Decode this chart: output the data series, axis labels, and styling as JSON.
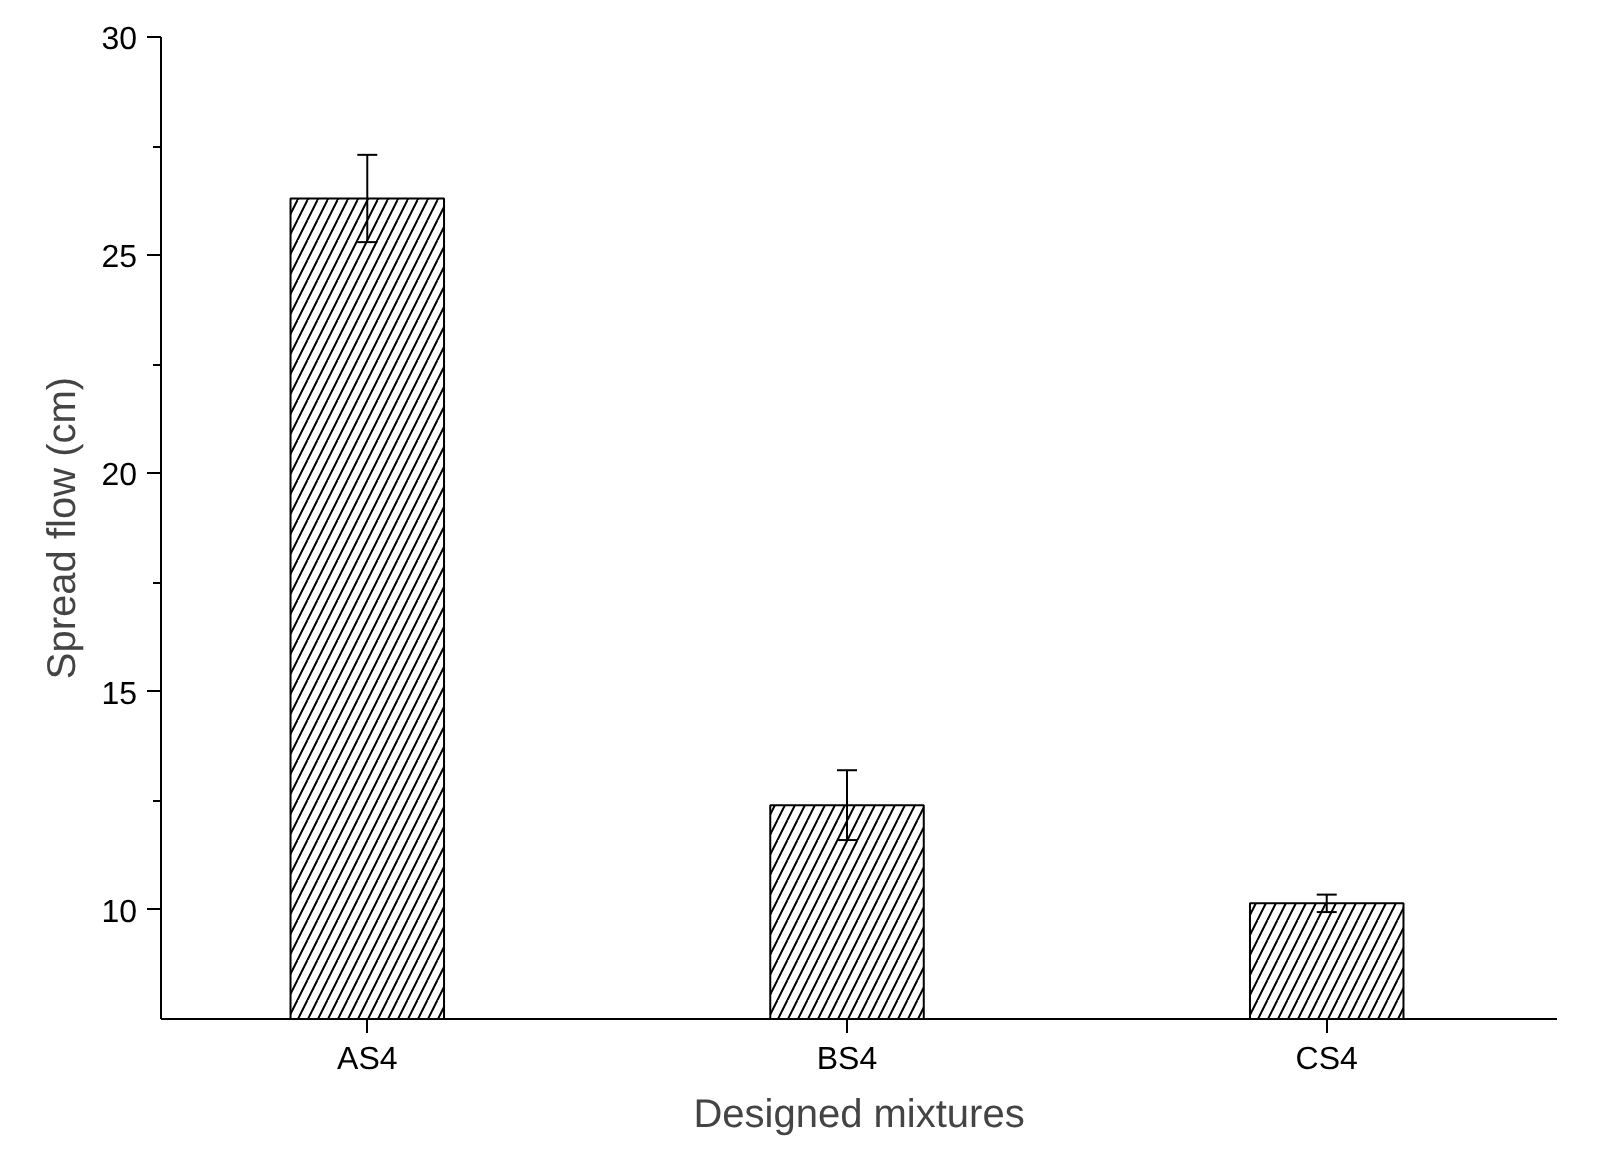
{
  "chart_data": {
    "type": "bar",
    "xlabel": "Designed mixtures",
    "ylabel": "Spread flow (cm)",
    "categories": [
      "AS4",
      "BS4",
      "CS4"
    ],
    "values": [
      26.3,
      12.4,
      10.15
    ],
    "errors": [
      1.0,
      0.8,
      0.2
    ],
    "color": "#000000",
    "ylim": [
      7.5,
      30
    ],
    "yticks": [
      10,
      15,
      20,
      25,
      30
    ],
    "grid": false
  }
}
